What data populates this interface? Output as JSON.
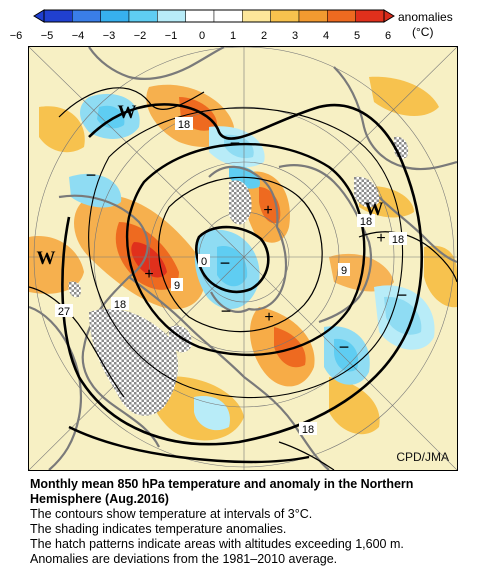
{
  "colorbar": {
    "label": "anomalies",
    "unit": "(°C)",
    "ticks": [
      "−6",
      "−5",
      "−4",
      "−3",
      "−2",
      "−1",
      "0",
      "1",
      "2",
      "3",
      "4",
      "5",
      "6"
    ],
    "colors": [
      "#2040d0",
      "#3a7ee8",
      "#37b0ee",
      "#5fcdf2",
      "#b8ecf8",
      "#ffffff",
      "#ffffff",
      "#fde79a",
      "#f7c24e",
      "#f29a30",
      "#ee6a20",
      "#e0301c"
    ]
  },
  "map": {
    "contour_labels": [
      "18",
      "18",
      "9",
      "0",
      "9",
      "18",
      "27",
      "18",
      "18"
    ],
    "markers": {
      "warm_sign": "+",
      "cold_sign": "−",
      "warm_center": "W"
    },
    "credit": "CPD/JMA"
  },
  "caption": {
    "title": "Monthly mean 850 hPa temperature and anomaly in the Northern Hemisphere (Aug.2016)",
    "lines": [
      "The contours show temperature at intervals of 3°C.",
      "The shading indicates temperature anomalies.",
      "The hatch patterns indicate areas with altitudes exceeding 1,600 m.",
      "Anomalies are deviations from the 1981–2010 average."
    ]
  }
}
